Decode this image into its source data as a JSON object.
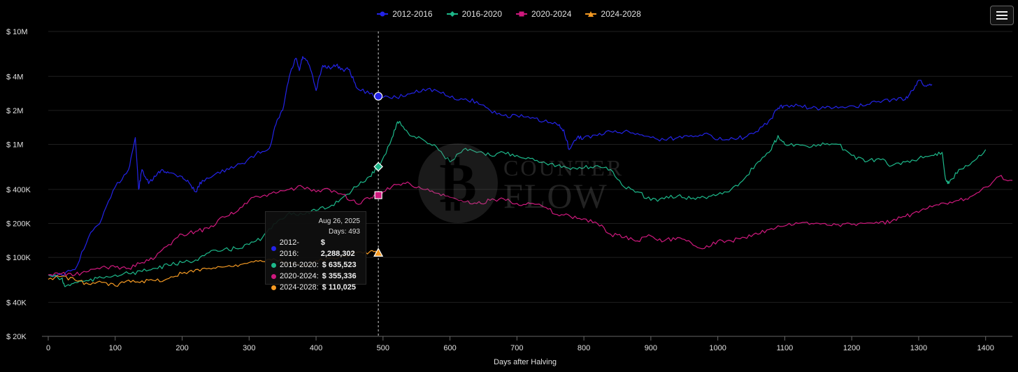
{
  "chart_data": {
    "type": "line",
    "xlabel": "Days after Halving",
    "ylabel": "",
    "xlim": [
      0,
      1440
    ],
    "ylim": [
      20000,
      10000000
    ],
    "yscale": "log",
    "xticks": [
      0,
      100,
      200,
      300,
      400,
      500,
      600,
      700,
      800,
      900,
      1000,
      1100,
      1200,
      1300,
      1400
    ],
    "yticks": [
      {
        "value": 20000,
        "label": "$ 20K"
      },
      {
        "value": 40000,
        "label": "$ 40K"
      },
      {
        "value": 100000,
        "label": "$ 100K"
      },
      {
        "value": 200000,
        "label": "$ 200K"
      },
      {
        "value": 400000,
        "label": "$ 400K"
      },
      {
        "value": 1000000,
        "label": "$ 1M"
      },
      {
        "value": 2000000,
        "label": "$ 2M"
      },
      {
        "value": 4000000,
        "label": "$ 4M"
      },
      {
        "value": 10000000,
        "label": "$ 10M"
      }
    ],
    "legend_position": "top-center",
    "grid": true,
    "crosshair_x": 493,
    "series": [
      {
        "name": "2012-2016",
        "color": "#2323e8",
        "marker": "circle",
        "x": [
          0,
          20,
          40,
          60,
          80,
          100,
          120,
          130,
          135,
          140,
          150,
          160,
          170,
          180,
          200,
          210,
          220,
          230,
          250,
          270,
          290,
          310,
          330,
          340,
          350,
          360,
          370,
          375,
          380,
          390,
          400,
          410,
          420,
          430,
          440,
          450,
          460,
          480,
          500,
          520,
          540,
          560,
          580,
          600,
          620,
          640,
          660,
          680,
          700,
          720,
          740,
          760,
          770,
          778,
          790,
          800,
          820,
          840,
          860,
          880,
          900,
          920,
          940,
          960,
          980,
          1000,
          1020,
          1040,
          1060,
          1080,
          1090,
          1100,
          1120,
          1140,
          1160,
          1180,
          1200,
          1220,
          1240,
          1260,
          1280,
          1290,
          1300,
          1310,
          1320
        ],
        "y": [
          70000,
          70000,
          78000,
          150000,
          220000,
          420000,
          600000,
          1150000,
          400000,
          600000,
          450000,
          520000,
          600000,
          560000,
          520000,
          460000,
          380000,
          480000,
          550000,
          600000,
          680000,
          820000,
          920000,
          1500000,
          2000000,
          4000000,
          5800000,
          4500000,
          6000000,
          5000000,
          3000000,
          5000000,
          4800000,
          5000000,
          4600000,
          4600000,
          3200000,
          2800000,
          2600000,
          2600000,
          2800000,
          3100000,
          3000000,
          2600000,
          2500000,
          2400000,
          2000000,
          1800000,
          1800000,
          1700000,
          1600000,
          1500000,
          1350000,
          900000,
          1150000,
          1150000,
          1200000,
          1300000,
          1300000,
          1250000,
          1150000,
          1100000,
          1150000,
          1200000,
          1250000,
          1100000,
          1150000,
          1150000,
          1300000,
          1700000,
          2100000,
          2200000,
          2200000,
          2100000,
          2100000,
          2100000,
          2200000,
          2200000,
          2400000,
          2500000,
          2500000,
          3000000,
          3700000,
          3300000,
          3400000
        ]
      },
      {
        "name": "2016-2020",
        "color": "#1db88a",
        "marker": "diamond",
        "x": [
          0,
          20,
          25,
          40,
          60,
          80,
          100,
          120,
          140,
          160,
          180,
          200,
          220,
          240,
          260,
          280,
          300,
          320,
          340,
          360,
          380,
          400,
          420,
          440,
          460,
          480,
          493,
          510,
          520,
          525,
          540,
          560,
          580,
          600,
          620,
          640,
          660,
          680,
          700,
          720,
          740,
          760,
          780,
          800,
          820,
          840,
          860,
          880,
          900,
          920,
          940,
          960,
          980,
          1000,
          1020,
          1040,
          1060,
          1080,
          1090,
          1100,
          1120,
          1140,
          1160,
          1180,
          1200,
          1220,
          1240,
          1260,
          1280,
          1300,
          1320,
          1335,
          1340,
          1345,
          1360,
          1380,
          1400
        ],
        "y": [
          70000,
          65000,
          55000,
          60000,
          62000,
          66000,
          70000,
          72000,
          75000,
          80000,
          85000,
          90000,
          95000,
          110000,
          115000,
          120000,
          130000,
          150000,
          200000,
          250000,
          240000,
          260000,
          280000,
          340000,
          420000,
          520000,
          635523,
          1000000,
          1500000,
          1600000,
          1200000,
          1100000,
          950000,
          700000,
          900000,
          850000,
          800000,
          850000,
          800000,
          750000,
          700000,
          650000,
          600000,
          620000,
          650000,
          600000,
          420000,
          380000,
          320000,
          330000,
          350000,
          330000,
          340000,
          360000,
          400000,
          500000,
          700000,
          900000,
          1200000,
          1000000,
          1000000,
          950000,
          1000000,
          1000000,
          800000,
          700000,
          750000,
          650000,
          700000,
          750000,
          800000,
          850000,
          500000,
          450000,
          600000,
          700000,
          900000
        ]
      },
      {
        "name": "2020-2024",
        "color": "#d0197e",
        "marker": "square",
        "x": [
          0,
          20,
          40,
          60,
          80,
          100,
          120,
          140,
          160,
          180,
          200,
          220,
          240,
          260,
          280,
          300,
          320,
          340,
          360,
          380,
          400,
          420,
          440,
          460,
          480,
          493,
          500,
          520,
          540,
          560,
          580,
          600,
          620,
          640,
          660,
          680,
          700,
          720,
          740,
          760,
          780,
          800,
          820,
          840,
          860,
          880,
          900,
          920,
          940,
          960,
          980,
          1000,
          1020,
          1040,
          1060,
          1080,
          1100,
          1120,
          1140,
          1160,
          1180,
          1200,
          1220,
          1240,
          1260,
          1280,
          1300,
          1320,
          1340,
          1360,
          1380,
          1400,
          1420,
          1440
        ],
        "y": [
          70000,
          72000,
          70000,
          75000,
          82000,
          82000,
          80000,
          90000,
          100000,
          130000,
          160000,
          170000,
          180000,
          230000,
          250000,
          320000,
          350000,
          370000,
          400000,
          420000,
          380000,
          400000,
          360000,
          300000,
          330000,
          355336,
          380000,
          440000,
          450000,
          400000,
          370000,
          340000,
          310000,
          300000,
          320000,
          330000,
          300000,
          300000,
          280000,
          240000,
          230000,
          220000,
          200000,
          160000,
          150000,
          140000,
          155000,
          140000,
          150000,
          135000,
          120000,
          140000,
          140000,
          150000,
          160000,
          180000,
          190000,
          200000,
          200000,
          200000,
          195000,
          195000,
          200000,
          200000,
          210000,
          230000,
          250000,
          280000,
          300000,
          320000,
          350000,
          420000,
          520000,
          480000
        ]
      },
      {
        "name": "2024-2028",
        "color": "#f59a23",
        "marker": "triangle",
        "x": [
          0,
          20,
          40,
          60,
          80,
          100,
          120,
          140,
          160,
          180,
          200,
          220,
          240,
          260,
          280,
          300,
          320,
          340,
          360,
          380,
          400,
          420,
          440,
          460,
          480,
          493
        ],
        "y": [
          64000,
          68000,
          63000,
          58000,
          60000,
          56000,
          63000,
          62000,
          62000,
          65000,
          72000,
          78000,
          80000,
          82000,
          86000,
          90000,
          92000,
          95000,
          88000,
          84000,
          94000,
          98000,
          103000,
          110000,
          112000,
          110025
        ]
      }
    ]
  },
  "legend": {
    "items": [
      {
        "label": "2012-2016",
        "color": "#2323e8",
        "marker": "circle"
      },
      {
        "label": "2016-2020",
        "color": "#1db88a",
        "marker": "diamond"
      },
      {
        "label": "2020-2024",
        "color": "#d0197e",
        "marker": "square"
      },
      {
        "label": "2024-2028",
        "color": "#f59a23",
        "marker": "triangle"
      }
    ]
  },
  "tooltip": {
    "date": "Aug 26, 2025",
    "days": "Days: 493",
    "rows": [
      {
        "label": "2012-2016: ",
        "value": "$ 2,288,302",
        "color": "#2323e8"
      },
      {
        "label": "2016-2020: ",
        "value": "$ 635,523",
        "color": "#1db88a"
      },
      {
        "label": "2020-2024: ",
        "value": "$ 355,336",
        "color": "#d0197e"
      },
      {
        "label": "2024-2028: ",
        "value": "$ 110,025",
        "color": "#f59a23"
      }
    ]
  },
  "watermark": {
    "line1": "COUNTER",
    "line2": "FLOW"
  },
  "menu": {
    "icon": "hamburger-icon"
  }
}
